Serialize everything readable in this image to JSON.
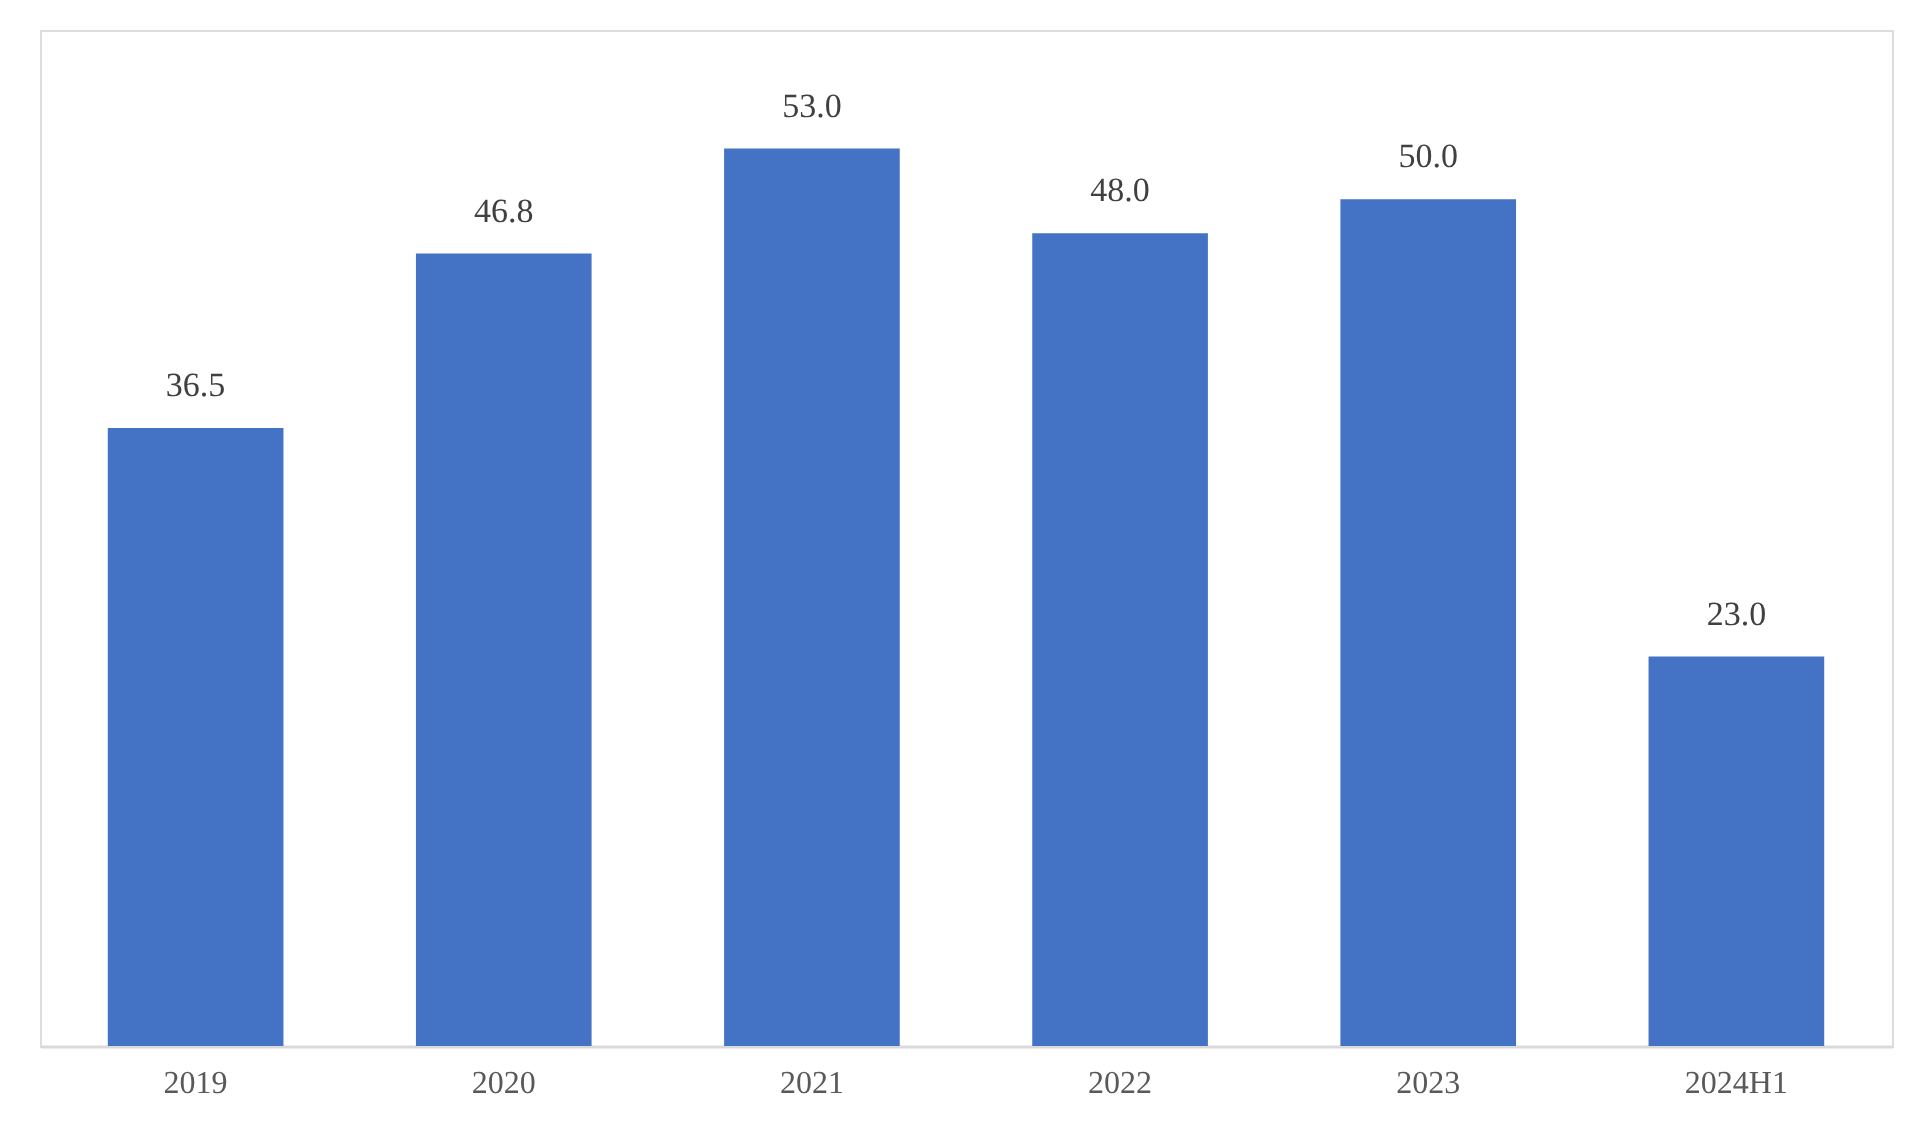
{
  "chart_data": {
    "type": "bar",
    "categories": [
      "2019",
      "2020",
      "2021",
      "2022",
      "2023",
      "2024H1"
    ],
    "values": [
      36.5,
      46.8,
      53.0,
      48.0,
      50.0,
      23.0
    ],
    "value_labels": [
      "36.5",
      "46.8",
      "53.0",
      "48.0",
      "50.0",
      "23.0"
    ],
    "color": "#4472c4",
    "ylim": [
      0,
      60
    ],
    "tick_labels": "x"
  }
}
